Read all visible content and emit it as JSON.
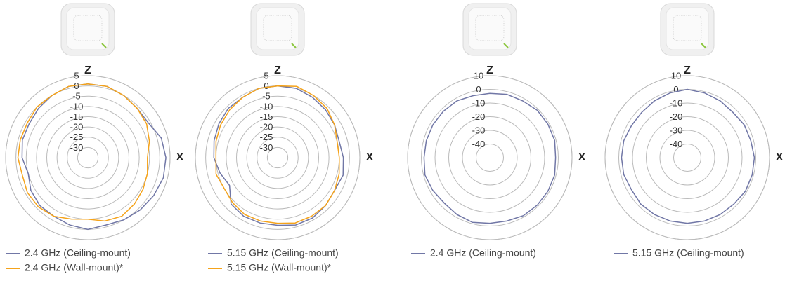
{
  "chart_data": [
    {
      "type": "polar",
      "x_label": "X",
      "z_label": "Z",
      "x": [
        0,
        15,
        30,
        45,
        60,
        75,
        90,
        105,
        120,
        135,
        150,
        165,
        180,
        195,
        210,
        225,
        240,
        255,
        270,
        285,
        300,
        315,
        330,
        345
      ],
      "rlim": [
        -35,
        5
      ],
      "rticks": [
        5,
        0,
        -5,
        -10,
        -15,
        -20,
        -25,
        -30
      ],
      "series": [
        {
          "name": "2.4 GHz (Ceiling-mount)",
          "color": "#7177a6",
          "values": [
            1,
            1,
            0,
            -1,
            -1,
            2,
            3,
            3,
            2,
            1,
            0,
            -1,
            0,
            -1,
            -2,
            -2,
            -3,
            -5,
            -3,
            -2,
            -2,
            -1,
            0,
            1
          ]
        },
        {
          "name": "2.4 GHz (Wall-mount)*",
          "color": "#f5a31a",
          "values": [
            1,
            1,
            0,
            -1,
            -2,
            -4,
            -6,
            -5,
            -4,
            -3,
            -2,
            -3,
            -5,
            -4,
            -2,
            -1,
            -1,
            -2,
            -1,
            -1,
            -1,
            0,
            0,
            1
          ]
        }
      ]
    },
    {
      "type": "polar",
      "x_label": "X",
      "z_label": "Z",
      "x": [
        0,
        15,
        30,
        45,
        60,
        75,
        90,
        105,
        120,
        135,
        150,
        165,
        180,
        195,
        210,
        225,
        240,
        255,
        270,
        285,
        300,
        315,
        330,
        345
      ],
      "rlim": [
        -35,
        5
      ],
      "rticks": [
        5,
        0,
        -5,
        -10,
        -15,
        -20,
        -25,
        -30
      ],
      "series": [
        {
          "name": "5.15 GHz (Ceiling-mount)",
          "color": "#7177a6",
          "values": [
            0,
            0,
            -1,
            -2,
            -3,
            -4,
            -3,
            -2,
            -3,
            -2,
            -1,
            -1,
            -2,
            -2,
            -2,
            -3,
            -8,
            -6,
            -4,
            -3,
            -2,
            -1,
            -1,
            0
          ]
        },
        {
          "name": "5.15 GHz (Wall-mount)*",
          "color": "#f5a31a",
          "values": [
            0,
            1,
            0,
            -1,
            -3,
            -5,
            -5,
            -4,
            -3,
            -2,
            -2,
            -2,
            -3,
            -3,
            -3,
            -4,
            -5,
            -4,
            -5,
            -4,
            -3,
            -2,
            -1,
            0
          ]
        }
      ]
    },
    {
      "type": "polar",
      "x_label": "X",
      "z_label": "Z",
      "x": [
        0,
        15,
        30,
        45,
        60,
        75,
        90,
        105,
        120,
        135,
        150,
        165,
        180,
        195,
        210,
        225,
        240,
        255,
        270,
        285,
        300,
        315,
        330,
        345
      ],
      "rlim": [
        -50,
        10
      ],
      "rticks": [
        10,
        0,
        -10,
        -20,
        -30,
        -40
      ],
      "series": [
        {
          "name": "2.4 GHz (Ceiling-mount)",
          "color": "#7177a6",
          "values": [
            -3,
            -2,
            -2,
            -1,
            -1,
            -1,
            -2,
            -1,
            -1,
            -1,
            -1,
            -2,
            -2,
            -1,
            -2,
            -3,
            -2,
            -1,
            -2,
            -2,
            -2,
            -2,
            -2,
            -3
          ]
        }
      ]
    },
    {
      "type": "polar",
      "x_label": "X",
      "z_label": "Z",
      "x": [
        0,
        15,
        30,
        45,
        60,
        75,
        90,
        105,
        120,
        135,
        150,
        165,
        180,
        195,
        210,
        225,
        240,
        255,
        270,
        285,
        300,
        315,
        330,
        345
      ],
      "rlim": [
        -50,
        10
      ],
      "rticks": [
        10,
        0,
        -10,
        -20,
        -30,
        -40
      ],
      "series": [
        {
          "name": "5.15 GHz (Ceiling-mount)",
          "color": "#7177a6",
          "values": [
            0,
            -1,
            -2,
            -3,
            -2,
            -2,
            -1,
            -1,
            -1,
            -2,
            -2,
            -2,
            -2,
            -2,
            -2,
            -2,
            -3,
            -2,
            -2,
            -2,
            -3,
            -3,
            -2,
            -1
          ]
        }
      ]
    }
  ]
}
